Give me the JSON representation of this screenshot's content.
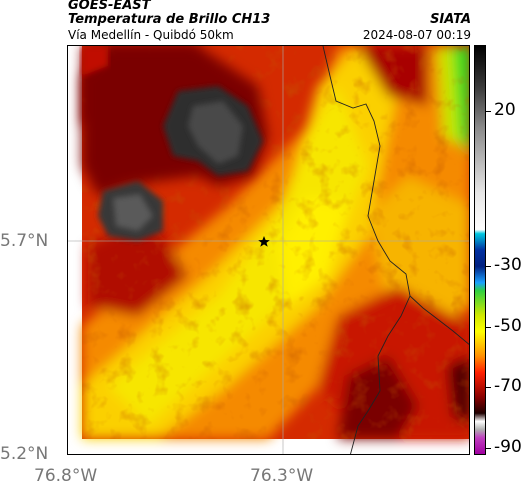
{
  "header": {
    "satellite": "GOES-EAST",
    "product": "Temperatura de Brillo CH13",
    "region": "Vía Medellín - Quibdó 50km",
    "agency": "SIATA",
    "datetime": "2024-08-07 00:19"
  },
  "map": {
    "lat_labels": [
      "5.7°N",
      "5.2°N"
    ],
    "lon_labels": [
      "76.8°W",
      "76.3°W"
    ],
    "marker": "star-icon"
  },
  "colorbar": {
    "tick_labels": [
      "20",
      "-30",
      "-50",
      "-70",
      "-90"
    ]
  }
}
